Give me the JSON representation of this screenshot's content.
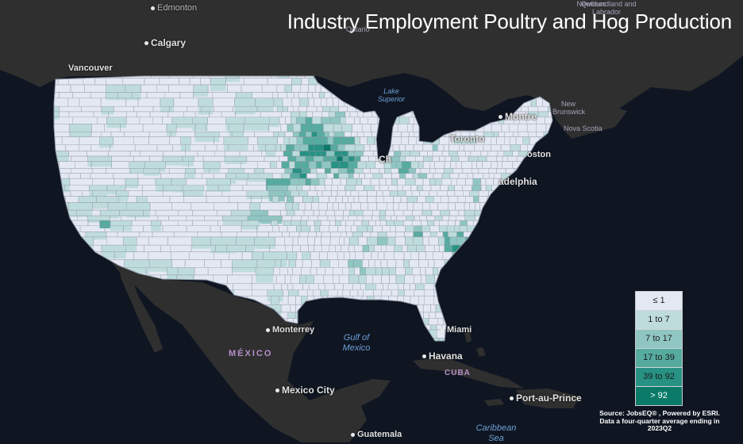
{
  "title": "Industry Employment Poultry and Hog Production",
  "legend": {
    "items": [
      {
        "label": "≤ 1",
        "color": "#e4e8f2",
        "text_color": "#222222"
      },
      {
        "label": "1 to 7",
        "color": "#bfdcdc",
        "text_color": "#222222"
      },
      {
        "label": "7 to 17",
        "color": "#8fc6c2",
        "text_color": "#222222"
      },
      {
        "label": "17 to 39",
        "color": "#56ab9f",
        "text_color": "#1a1a1a"
      },
      {
        "label": "39 to 92",
        "color": "#279283",
        "text_color": "#1a1a1a"
      },
      {
        "label": "> 92",
        "color": "#0c7a69",
        "text_color": "#ffffff"
      }
    ]
  },
  "source": "Source: JobsEQ® , Powered by ESRI. Data a four-quarter average ending in 2023Q2",
  "places": {
    "edmonton": "Edmonton",
    "calgary": "Calgary",
    "vancouver": "Vancouver",
    "montreal": "Montre",
    "toronto": "Toronto",
    "chicago": "Ch",
    "boston": "oston",
    "philadelphia": "adelphia",
    "monterrey": "Monterrey",
    "mexico_city": "Mexico City",
    "miami": "Miami",
    "havana": "Havana",
    "port_au_prince": "Port-au-Prince",
    "guatemala": "Guatemala",
    "quebec": "Quebec",
    "ontario": "Ontario"
  },
  "water": {
    "lake_superior": "Lake Superior",
    "gulf_of_mexico": "Gulf of Mexico",
    "caribbean_sea": "Caribbean Sea"
  },
  "countries": {
    "mexico": "MÉXICO",
    "cuba": "CUBA"
  },
  "regions": {
    "newfoundland": "Newfoundland and Labrador",
    "new_brunswick": "New Brunswick",
    "nova_scotia": "Nova Scotia"
  },
  "colors": {
    "ocean": "#0f1622",
    "land": "#2e2e2e",
    "us_base": "#e4e8f2",
    "county_border": "#7f8696"
  }
}
